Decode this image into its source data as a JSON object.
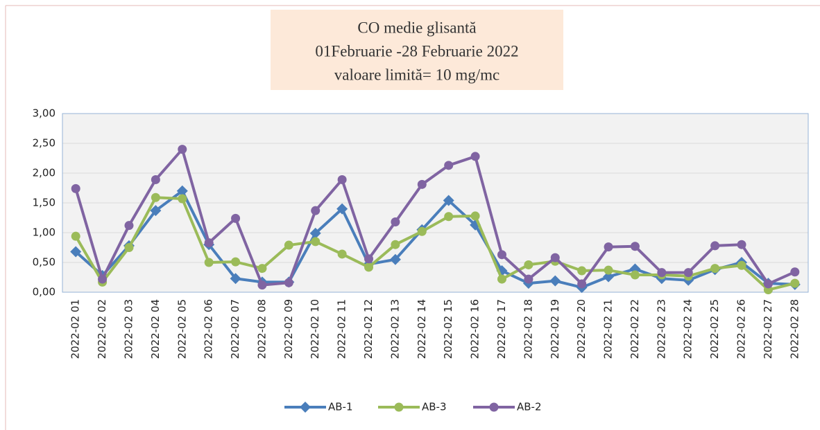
{
  "chart_data": {
    "type": "line",
    "title": [
      "CO medie glisantă",
      "01Februarie -28 Februarie 2022",
      "valoare limită= 10 mg/mc"
    ],
    "categories": [
      "2022-02 01",
      "2022-02 02",
      "2022-02 03",
      "2022-02 04",
      "2022-02 05",
      "2022-02 06",
      "2022-02 07",
      "2022-02 08",
      "2022-02 09",
      "2022-02 10",
      "2022-02 11",
      "2022-02 12",
      "2022-02 13",
      "2022-02 14",
      "2022-02 15",
      "2022-02 16",
      "2022-02 17",
      "2022-02 18",
      "2022-02 19",
      "2022-02 20",
      "2022-02 21",
      "2022-02 22",
      "2022-02 23",
      "2022-02 24",
      "2022-02 25",
      "2022-02 26",
      "2022-02 27",
      "2022-02 28"
    ],
    "series": [
      {
        "name": "AB-1",
        "color": "#4a7ebb",
        "marker": "diamond",
        "values": [
          0.68,
          0.28,
          0.78,
          1.37,
          1.7,
          0.8,
          0.23,
          0.17,
          0.17,
          0.99,
          1.4,
          0.47,
          0.55,
          1.05,
          1.54,
          1.13,
          0.36,
          0.15,
          0.19,
          0.08,
          0.26,
          0.39,
          0.23,
          0.2,
          0.38,
          0.5,
          0.15,
          0.13
        ]
      },
      {
        "name": "AB-3",
        "color": "#9bbb59",
        "marker": "circle",
        "values": [
          0.94,
          0.17,
          0.75,
          1.59,
          1.57,
          0.5,
          0.51,
          0.4,
          0.79,
          0.85,
          0.64,
          0.42,
          0.8,
          1.02,
          1.27,
          1.28,
          0.22,
          0.46,
          0.52,
          0.36,
          0.37,
          0.29,
          0.29,
          0.27,
          0.4,
          0.45,
          0.04,
          0.15
        ]
      },
      {
        "name": "AB-2",
        "color": "#8064a2",
        "marker": "circle",
        "values": [
          1.74,
          0.22,
          1.12,
          1.89,
          2.4,
          0.83,
          1.24,
          0.12,
          0.16,
          1.37,
          1.89,
          0.56,
          1.18,
          1.81,
          2.13,
          2.28,
          0.63,
          0.22,
          0.58,
          0.14,
          0.76,
          0.77,
          0.33,
          0.33,
          0.78,
          0.8,
          0.14,
          0.34
        ]
      }
    ],
    "ylim": [
      0,
      3
    ],
    "yticks": [
      {
        "value": 0,
        "label": "0,00"
      },
      {
        "value": 0.5,
        "label": "0,50"
      },
      {
        "value": 1,
        "label": "1,00"
      },
      {
        "value": 1.5,
        "label": "1,50"
      },
      {
        "value": 2,
        "label": "2,00"
      },
      {
        "value": 2.5,
        "label": "2,50"
      },
      {
        "value": 3,
        "label": "3,00"
      }
    ],
    "grid": true,
    "legend": "bottom"
  }
}
